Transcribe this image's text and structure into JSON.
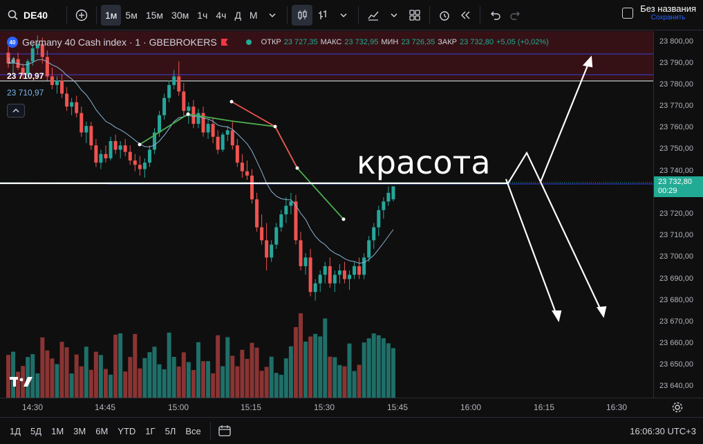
{
  "toolbar": {
    "symbol": "DE40",
    "intervals": [
      "1м",
      "5м",
      "15м",
      "30м",
      "1ч",
      "4ч",
      "Д",
      "М"
    ],
    "active_interval": "1м",
    "save_title": "Без названия",
    "save_subtitle": "Сохранить"
  },
  "legend": {
    "badge": "40",
    "instrument": "Germany 40 Cash index · 1 · GBEBROKERS",
    "open_label": "ОТКР",
    "open_value": "23 727,35",
    "high_label": "МАКС",
    "high_value": "23 732,95",
    "low_label": "МИН",
    "low_value": "23 726,35",
    "close_label": "ЗАКР",
    "close_value": "23 732,80",
    "change": "+5,05 (+0,02%)",
    "indicator_length": "14",
    "label_white": "23 710,97",
    "label_blue": "23 710,97"
  },
  "annotation": {
    "text": "красота"
  },
  "price_axis": {
    "ticks": [
      "23 800,00",
      "23 790,00",
      "23 780,00",
      "23 770,00",
      "23 760,00",
      "23 750,00",
      "23 740,00",
      "23 730,00",
      "23 720,00",
      "23 710,00",
      "23 700,00",
      "23 690,00",
      "23 680,00",
      "23 670,00",
      "23 660,00",
      "23 650,00",
      "23 640,00"
    ],
    "current_price": "23 732,80",
    "countdown": "00:29"
  },
  "time_axis": {
    "ticks": [
      "14:30",
      "14:45",
      "15:00",
      "15:15",
      "15:30",
      "15:45",
      "16:00",
      "16:15",
      "16:30"
    ]
  },
  "bottombar": {
    "ranges": [
      "1Д",
      "5Д",
      "1М",
      "3М",
      "6М",
      "YTD",
      "1Г",
      "5Л",
      "Все"
    ],
    "clock": "16:06:30 UTC+3"
  },
  "colors": {
    "up": "#26a69a",
    "down": "#ef5350",
    "accent": "#2962ff",
    "volume_up": "#1f6f68",
    "volume_down": "#8a3433"
  },
  "chart_data": {
    "type": "candlestick",
    "y_range": [
      23635,
      23805
    ],
    "x_start": "14:26",
    "interval_minutes": 1,
    "candles": [
      [
        23795,
        23798,
        23788,
        23790
      ],
      [
        23790,
        23793,
        23785,
        23792
      ],
      [
        23792,
        23795,
        23787,
        23788
      ],
      [
        23788,
        23790,
        23783,
        23785
      ],
      [
        23785,
        23792,
        23784,
        23791
      ],
      [
        23791,
        23799,
        23789,
        23797
      ],
      [
        23797,
        23803,
        23794,
        23799
      ],
      [
        23799,
        23802,
        23790,
        23793
      ],
      [
        23793,
        23796,
        23782,
        23784
      ],
      [
        23784,
        23788,
        23778,
        23780
      ],
      [
        23780,
        23784,
        23776,
        23782
      ],
      [
        23782,
        23785,
        23774,
        23776
      ],
      [
        23776,
        23779,
        23768,
        23770
      ],
      [
        23770,
        23774,
        23766,
        23772
      ],
      [
        23772,
        23775,
        23765,
        23767
      ],
      [
        23767,
        23770,
        23756,
        23758
      ],
      [
        23758,
        23763,
        23753,
        23761
      ],
      [
        23761,
        23763,
        23750,
        23752
      ],
      [
        23752,
        23755,
        23742,
        23744
      ],
      [
        23744,
        23750,
        23741,
        23748
      ],
      [
        23748,
        23752,
        23744,
        23746
      ],
      [
        23746,
        23756,
        23745,
        23754
      ],
      [
        23754,
        23757,
        23748,
        23750
      ],
      [
        23750,
        23754,
        23746,
        23752
      ],
      [
        23752,
        23755,
        23747,
        23749
      ],
      [
        23749,
        23752,
        23743,
        23745
      ],
      [
        23745,
        23748,
        23740,
        23743
      ],
      [
        23743,
        23747,
        23738,
        23741
      ],
      [
        23741,
        23746,
        23737,
        23744
      ],
      [
        23744,
        23752,
        23742,
        23750
      ],
      [
        23750,
        23760,
        23748,
        23758
      ],
      [
        23758,
        23768,
        23756,
        23766
      ],
      [
        23766,
        23776,
        23764,
        23774
      ],
      [
        23774,
        23782,
        23772,
        23780
      ],
      [
        23780,
        23787,
        23778,
        23784
      ],
      [
        23784,
        23791,
        23775,
        23777
      ],
      [
        23777,
        23781,
        23765,
        23768
      ],
      [
        23768,
        23772,
        23762,
        23770
      ],
      [
        23770,
        23773,
        23760,
        23762
      ],
      [
        23762,
        23769,
        23760,
        23767
      ],
      [
        23767,
        23770,
        23756,
        23758
      ],
      [
        23758,
        23764,
        23755,
        23762
      ],
      [
        23762,
        23765,
        23753,
        23756
      ],
      [
        23756,
        23759,
        23748,
        23750
      ],
      [
        23750,
        23758,
        23749,
        23757
      ],
      [
        23757,
        23761,
        23754,
        23759
      ],
      [
        23759,
        23763,
        23750,
        23752
      ],
      [
        23752,
        23755,
        23742,
        23744
      ],
      [
        23744,
        23748,
        23737,
        23740
      ],
      [
        23740,
        23745,
        23736,
        23738
      ],
      [
        23738,
        23741,
        23725,
        23727
      ],
      [
        23727,
        23730,
        23712,
        23714
      ],
      [
        23714,
        23720,
        23706,
        23708
      ],
      [
        23708,
        23716,
        23694,
        23700
      ],
      [
        23700,
        23708,
        23698,
        23706
      ],
      [
        23706,
        23716,
        23704,
        23714
      ],
      [
        23714,
        23722,
        23712,
        23720
      ],
      [
        23720,
        23728,
        23716,
        23724
      ],
      [
        23724,
        23730,
        23720,
        23726
      ],
      [
        23726,
        23729,
        23706,
        23708
      ],
      [
        23708,
        23712,
        23694,
        23696
      ],
      [
        23696,
        23702,
        23692,
        23700
      ],
      [
        23700,
        23704,
        23682,
        23684
      ],
      [
        23684,
        23690,
        23680,
        23688
      ],
      [
        23688,
        23694,
        23684,
        23692
      ],
      [
        23692,
        23698,
        23688,
        23696
      ],
      [
        23696,
        23700,
        23686,
        23688
      ],
      [
        23688,
        23694,
        23684,
        23692
      ],
      [
        23692,
        23697,
        23688,
        23694
      ],
      [
        23694,
        23698,
        23688,
        23690
      ],
      [
        23690,
        23694,
        23685,
        23692
      ],
      [
        23692,
        23698,
        23690,
        23696
      ],
      [
        23696,
        23700,
        23690,
        23692
      ],
      [
        23692,
        23702,
        23690,
        23700
      ],
      [
        23700,
        23710,
        23698,
        23708
      ],
      [
        23708,
        23716,
        23704,
        23714
      ],
      [
        23714,
        23724,
        23710,
        23722
      ],
      [
        23722,
        23728,
        23718,
        23726
      ],
      [
        23726,
        23733,
        23724,
        23730
      ],
      [
        23727,
        23733,
        23726,
        23733
      ]
    ],
    "ma_points": [
      [
        23792
      ],
      [
        23791
      ],
      [
        23790
      ],
      [
        23789
      ],
      [
        23788
      ],
      [
        23787
      ],
      [
        23787
      ],
      [
        23786
      ],
      [
        23784
      ],
      [
        23782
      ]
    ]
  }
}
